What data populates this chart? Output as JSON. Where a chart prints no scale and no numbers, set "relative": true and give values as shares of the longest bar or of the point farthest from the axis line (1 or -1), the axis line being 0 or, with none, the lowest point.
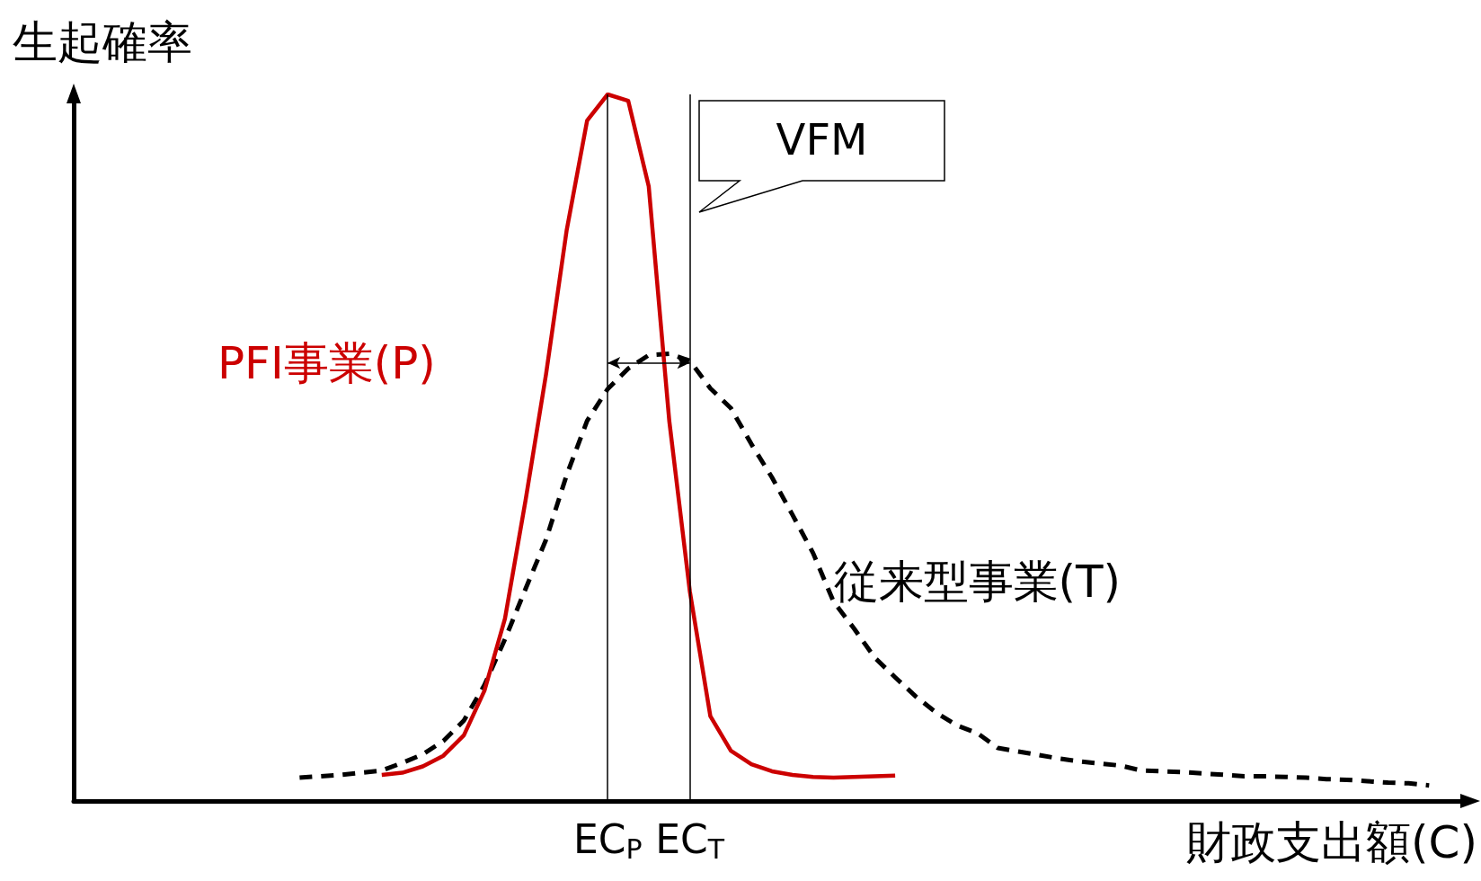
{
  "chart_data": {
    "type": "line",
    "relative": true,
    "xlabel": "財政支出額(C)",
    "ylabel": "生起確率",
    "tick_labels": "x",
    "grid": false,
    "legend": false,
    "marker": "none",
    "annotations": [
      "VFM"
    ],
    "categories": [
      null,
      null,
      null,
      null,
      null,
      null,
      null,
      null,
      null,
      null,
      null,
      null,
      null,
      null,
      null,
      null,
      null,
      null,
      null,
      null,
      null,
      null,
      null,
      null,
      null,
      null,
      "EC$_{P}$",
      null,
      null,
      null,
      "EC$_{T}$",
      null,
      null,
      null,
      null,
      null,
      null,
      null,
      null,
      null,
      null,
      null,
      null,
      null,
      null,
      null,
      null,
      null,
      null,
      null,
      null,
      null,
      null,
      null,
      null,
      null,
      null,
      null,
      null,
      null,
      null,
      null,
      null,
      null,
      null,
      null,
      null,
      null,
      null
    ],
    "ref_lines": [
      {
        "axis": "x",
        "value": "EC$_{P}$",
        "color": "#000000",
        "line_style": "solid"
      },
      {
        "axis": "x",
        "value": "EC$_{T}$",
        "color": "#000000",
        "line_style": "solid"
      }
    ],
    "series": [
      {
        "name": "PFI事業(P)",
        "color": "#cc0000",
        "line_style": "solid",
        "values": [
          null,
          null,
          null,
          null,
          null,
          null,
          null,
          null,
          null,
          null,
          null,
          null,
          null,
          null,
          null,
          0.037,
          0.04,
          0.049,
          0.064,
          0.093,
          0.156,
          0.258,
          0.425,
          0.604,
          0.807,
          0.963,
          1,
          0.991,
          0.87,
          0.538,
          0.297,
          0.12,
          0.071,
          0.052,
          0.042,
          0.037,
          0.034,
          0.033,
          0.034,
          0.035,
          0.036,
          null,
          null,
          null,
          null,
          null,
          null,
          null,
          null,
          null,
          null,
          null,
          null,
          null,
          null,
          null,
          null,
          null,
          null,
          null,
          null,
          null,
          null,
          null,
          null,
          null,
          null,
          null,
          null
        ]
      },
      {
        "name": "従来型事業(T)",
        "color": "#000000",
        "line_style": "dashed",
        "values": [
          null,
          null,
          null,
          null,
          null,
          null,
          null,
          null,
          null,
          null,
          null,
          0.033,
          0.035,
          0.037,
          0.04,
          0.043,
          0.054,
          0.066,
          0.085,
          0.114,
          0.164,
          0.229,
          0.3,
          0.37,
          0.461,
          0.538,
          0.583,
          0.612,
          0.631,
          0.633,
          0.623,
          0.584,
          0.556,
          0.505,
          0.458,
          0.405,
          0.351,
          0.282,
          0.244,
          0.203,
          0.175,
          0.148,
          0.125,
          0.107,
          0.096,
          0.075,
          0.07,
          0.065,
          0.06,
          0.056,
          0.053,
          0.05,
          0.043,
          0.042,
          0.041,
          0.039,
          0.037,
          0.035,
          0.035,
          0.034,
          0.033,
          0.031,
          0.03,
          0.028,
          0.026,
          0.025,
          0.022,
          null,
          null
        ]
      }
    ]
  }
}
